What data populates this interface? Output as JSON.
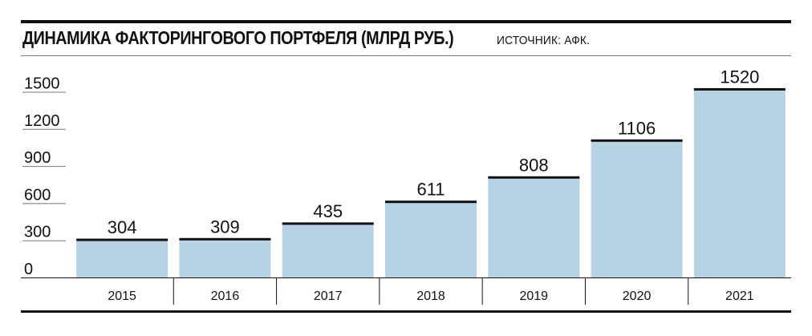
{
  "header": {
    "title": "ДИНАМИКА ФАКТОРИНГОВОГО ПОРТФЕЛЯ (МЛРД РУБ.)",
    "source": "ИСТОЧНИК: АФК."
  },
  "colors": {
    "bar_fill": "#b7d3e3",
    "bar_top": "#111111",
    "rule": "#111111",
    "grid": "#777777"
  },
  "chart_data": {
    "type": "bar",
    "title": "ДИНАМИКА ФАКТОРИНГОВОГО ПОРТФЕЛЯ (МЛРД РУБ.)",
    "xlabel": "",
    "ylabel": "",
    "categories": [
      "2015",
      "2016",
      "2017",
      "2018",
      "2019",
      "2020",
      "2021"
    ],
    "values": [
      304,
      309,
      435,
      611,
      808,
      1106,
      1520
    ],
    "value_labels": [
      "304",
      "309",
      "435",
      "611",
      "808",
      "1106",
      "1520"
    ],
    "yticks": [
      0,
      300,
      600,
      900,
      1200,
      1500
    ],
    "ytick_labels": [
      "0",
      "300",
      "600",
      "900",
      "1200",
      "1500"
    ],
    "ylim": [
      0,
      1500
    ],
    "grid": false,
    "legend": "none"
  }
}
